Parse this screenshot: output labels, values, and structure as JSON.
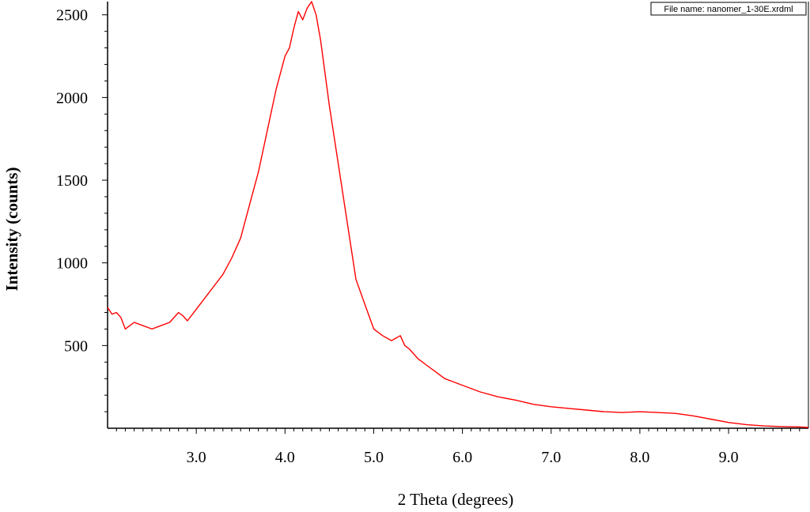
{
  "chart_data": {
    "type": "line",
    "title": "",
    "xlabel": "2 Theta (degrees)",
    "ylabel": "Intensity (counts)",
    "annotation": "File name: nanomer_1-30E.xrdml",
    "xlim": [
      2.0,
      9.9
    ],
    "ylim": [
      0,
      2580
    ],
    "grid": false,
    "x_ticks": [
      "3.0",
      "4.0",
      "5.0",
      "6.0",
      "7.0",
      "8.0",
      "9.0"
    ],
    "y_ticks": [
      "500",
      "1000",
      "1500",
      "2000",
      "2500"
    ],
    "x_tick_values": [
      3,
      4,
      5,
      6,
      7,
      8,
      9
    ],
    "y_tick_values": [
      500,
      1000,
      1500,
      2000,
      2500
    ],
    "y_minor_step": 100,
    "series": [
      {
        "color": "#ff0000",
        "x": [
          2.0,
          2.05,
          2.1,
          2.15,
          2.2,
          2.25,
          2.3,
          2.4,
          2.5,
          2.6,
          2.7,
          2.8,
          2.85,
          2.9,
          3.0,
          3.1,
          3.2,
          3.3,
          3.4,
          3.5,
          3.6,
          3.7,
          3.8,
          3.9,
          4.0,
          4.05,
          4.1,
          4.15,
          4.2,
          4.25,
          4.3,
          4.35,
          4.4,
          4.45,
          4.5,
          4.6,
          4.7,
          4.8,
          4.9,
          5.0,
          5.1,
          5.2,
          5.3,
          5.35,
          5.4,
          5.5,
          5.6,
          5.7,
          5.8,
          5.9,
          6.0,
          6.2,
          6.4,
          6.6,
          6.8,
          7.0,
          7.2,
          7.4,
          7.6,
          7.8,
          8.0,
          8.2,
          8.4,
          8.6,
          8.8,
          9.0,
          9.2,
          9.4,
          9.6,
          9.8,
          9.9
        ],
        "y": [
          730,
          690,
          700,
          670,
          600,
          620,
          640,
          620,
          600,
          620,
          640,
          700,
          680,
          650,
          720,
          790,
          860,
          930,
          1030,
          1150,
          1350,
          1550,
          1800,
          2050,
          2250,
          2300,
          2420,
          2520,
          2470,
          2540,
          2580,
          2500,
          2350,
          2150,
          1950,
          1600,
          1250,
          900,
          750,
          600,
          560,
          530,
          560,
          500,
          480,
          420,
          380,
          340,
          300,
          280,
          260,
          220,
          190,
          170,
          145,
          130,
          120,
          110,
          100,
          95,
          100,
          95,
          90,
          75,
          55,
          35,
          22,
          14,
          10,
          8,
          5
        ]
      }
    ]
  }
}
